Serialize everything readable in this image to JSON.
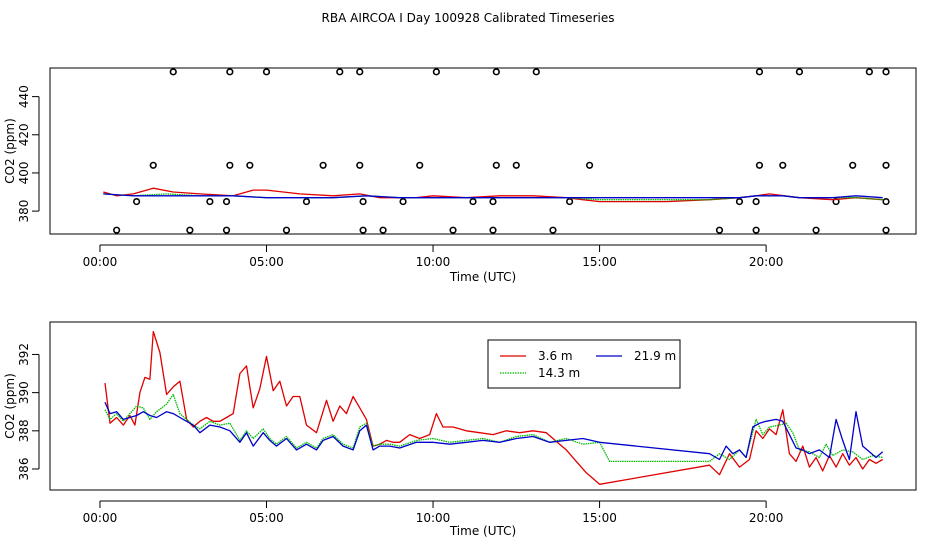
{
  "title": "RBA AIRCOA I  Day 100928  Calibrated Timeseries",
  "colors": {
    "s36": "#e00000",
    "s143": "#00bb00",
    "s219": "#0000cc",
    "black": "#000000"
  },
  "chart_data": [
    {
      "type": "line",
      "panel": "top",
      "xlabel": "Time (UTC)",
      "ylabel": "CO2 (ppm)",
      "xlim": [
        -1.5,
        24.5
      ],
      "ylim": [
        368,
        455
      ],
      "xticks": [
        0,
        5,
        10,
        15,
        20
      ],
      "xtick_labels": [
        "00:00",
        "05:00",
        "10:00",
        "15:00",
        "20:00"
      ],
      "yticks": [
        380,
        400,
        420,
        440
      ],
      "ytick_labels": [
        "380",
        "400",
        "420",
        "440"
      ],
      "series": [
        {
          "name": "3.6 m",
          "color_key": "s36",
          "x": [
            0.1,
            0.5,
            1.0,
            1.6,
            2.2,
            3.0,
            4.0,
            4.6,
            5.0,
            5.5,
            6.0,
            7.0,
            7.8,
            8.4,
            9.5,
            10.0,
            11.0,
            12.0,
            13.0,
            14.0,
            14.5,
            15.0,
            16.0,
            17.0,
            18.3,
            19.2,
            19.7,
            20.1,
            21.0,
            22.0,
            22.7,
            23.5
          ],
          "values": [
            390,
            388,
            389,
            392,
            390,
            389,
            388,
            391,
            391,
            390,
            389,
            388,
            389,
            387,
            387,
            388,
            387,
            388,
            388,
            387,
            386,
            385,
            385,
            385,
            386,
            387,
            388,
            389,
            387,
            386,
            387,
            386
          ]
        },
        {
          "name": "14.3 m",
          "color_key": "s143",
          "x": [
            0.1,
            1.0,
            2.0,
            3.0,
            4.0,
            5.0,
            6.0,
            7.0,
            8.0,
            9.0,
            10.0,
            11.0,
            12.0,
            13.0,
            14.0,
            15.0,
            16.0,
            17.0,
            18.3,
            19.2,
            19.7,
            20.5,
            21.0,
            22.0,
            22.7,
            23.5
          ],
          "values": [
            389,
            388,
            389,
            388,
            388,
            387,
            387,
            387,
            388,
            387,
            387,
            387,
            387,
            387,
            387,
            386,
            386,
            386,
            386,
            387,
            388,
            388,
            387,
            387,
            387,
            386
          ]
        },
        {
          "name": "21.9 m",
          "color_key": "s219",
          "x": [
            0.1,
            1.0,
            2.0,
            3.0,
            4.0,
            5.0,
            6.0,
            7.0,
            8.0,
            9.0,
            10.0,
            11.0,
            12.0,
            13.0,
            14.0,
            15.0,
            16.0,
            17.0,
            18.3,
            19.2,
            19.7,
            20.5,
            21.0,
            22.0,
            22.7,
            23.5
          ],
          "values": [
            389,
            388,
            388,
            388,
            388,
            387,
            387,
            387,
            388,
            387,
            387,
            387,
            387,
            387,
            387,
            387,
            387,
            387,
            387,
            387,
            388,
            388,
            387,
            387,
            388,
            387
          ]
        }
      ],
      "flags": {
        "x": [
          0.5,
          2.7,
          3.8,
          5.6,
          7.9,
          8.5,
          10.6,
          11.8,
          13.6,
          18.6,
          19.7,
          21.5,
          23.6,
          1.1,
          3.3,
          3.8,
          6.2,
          7.9,
          9.1,
          11.2,
          11.8,
          14.1,
          19.2,
          19.7,
          22.1,
          23.6,
          1.6,
          3.9,
          4.5,
          6.7,
          7.8,
          9.6,
          11.9,
          12.5,
          14.7,
          19.8,
          20.5,
          22.6,
          23.6,
          2.2,
          3.9,
          5.0,
          7.2,
          7.8,
          10.1,
          11.9,
          13.1,
          19.8,
          21.0,
          23.1,
          23.6
        ],
        "values": [
          370,
          370,
          370,
          370,
          370,
          370,
          370,
          370,
          370,
          370,
          370,
          370,
          370,
          385,
          385,
          385,
          385,
          385,
          385,
          385,
          385,
          385,
          385,
          385,
          385,
          385,
          404,
          404,
          404,
          404,
          404,
          404,
          404,
          404,
          404,
          404,
          404,
          404,
          404,
          453,
          453,
          453,
          453,
          453,
          453,
          453,
          453,
          453,
          453,
          453,
          453
        ]
      }
    },
    {
      "type": "line",
      "panel": "bottom",
      "xlabel": "Time (UTC)",
      "ylabel": "CO2 (ppm)",
      "xlim": [
        -1.5,
        24.5
      ],
      "ylim": [
        384.9,
        393.7
      ],
      "xticks": [
        0,
        5,
        10,
        15,
        20
      ],
      "xtick_labels": [
        "00:00",
        "05:00",
        "10:00",
        "15:00",
        "20:00"
      ],
      "yticks": [
        386,
        388,
        390,
        392
      ],
      "ytick_labels": [
        "386",
        "388",
        "390",
        "392"
      ],
      "legend": {
        "position": "top-center",
        "entries": [
          "3.6 m",
          "21.9 m",
          "14.3 m"
        ]
      },
      "series": [
        {
          "name": "3.6 m",
          "color_key": "s36",
          "x": [
            0.15,
            0.3,
            0.5,
            0.7,
            0.9,
            1.05,
            1.2,
            1.35,
            1.5,
            1.6,
            1.8,
            2.0,
            2.2,
            2.4,
            2.6,
            2.8,
            3.0,
            3.2,
            3.4,
            3.6,
            3.8,
            4.0,
            4.2,
            4.4,
            4.6,
            4.8,
            5.0,
            5.2,
            5.4,
            5.6,
            5.8,
            6.0,
            6.2,
            6.5,
            6.8,
            7.0,
            7.2,
            7.4,
            7.6,
            7.8,
            8.0,
            8.2,
            8.4,
            8.6,
            8.8,
            9.0,
            9.3,
            9.6,
            9.9,
            10.1,
            10.3,
            10.6,
            11.0,
            11.4,
            11.8,
            12.2,
            12.6,
            13.0,
            13.4,
            13.8,
            14.0,
            14.3,
            14.6,
            15.0,
            18.3,
            18.6,
            18.9,
            19.2,
            19.5,
            19.7,
            19.9,
            20.1,
            20.3,
            20.5,
            20.7,
            20.9,
            21.1,
            21.3,
            21.5,
            21.7,
            21.9,
            22.1,
            22.3,
            22.5,
            22.7,
            22.9,
            23.1,
            23.3,
            23.5
          ],
          "values": [
            390.5,
            388.4,
            388.7,
            388.3,
            388.8,
            388.3,
            390.0,
            390.8,
            390.7,
            393.2,
            392.1,
            389.9,
            390.3,
            390.6,
            388.6,
            388.2,
            388.5,
            388.7,
            388.5,
            388.5,
            388.7,
            388.9,
            391.0,
            391.4,
            389.2,
            390.2,
            391.9,
            390.1,
            390.6,
            389.3,
            389.8,
            389.8,
            388.3,
            387.9,
            389.6,
            388.5,
            389.3,
            388.9,
            389.8,
            389.2,
            388.6,
            387.2,
            387.3,
            387.5,
            387.4,
            387.4,
            387.8,
            387.6,
            387.8,
            388.9,
            388.2,
            388.2,
            388.0,
            387.9,
            387.8,
            388.0,
            387.9,
            388.0,
            387.9,
            387.3,
            387.0,
            386.4,
            385.8,
            385.2,
            386.2,
            385.7,
            386.8,
            386.1,
            386.5,
            388.0,
            387.6,
            388.1,
            387.8,
            389.1,
            386.8,
            386.4,
            387.2,
            386.1,
            386.6,
            385.9,
            386.7,
            386.1,
            386.8,
            386.2,
            386.6,
            386.0,
            386.5,
            386.3,
            386.5
          ]
        },
        {
          "name": "14.3 m",
          "color_key": "s143",
          "x": [
            0.15,
            0.3,
            0.5,
            0.7,
            0.9,
            1.1,
            1.3,
            1.5,
            1.7,
            2.0,
            2.2,
            2.4,
            2.6,
            2.8,
            3.0,
            3.3,
            3.6,
            3.9,
            4.2,
            4.4,
            4.6,
            4.9,
            5.1,
            5.3,
            5.6,
            5.9,
            6.2,
            6.5,
            6.7,
            7.0,
            7.3,
            7.6,
            7.8,
            8.0,
            8.2,
            8.4,
            8.7,
            9.0,
            9.5,
            10.0,
            10.5,
            11.0,
            11.5,
            12.0,
            12.5,
            13.0,
            13.5,
            14.0,
            14.5,
            15.0,
            15.3,
            18.3,
            18.6,
            18.9,
            19.2,
            19.4,
            19.7,
            19.9,
            20.1,
            20.4,
            20.6,
            20.8,
            21.0,
            21.3,
            21.6,
            21.8,
            22.0,
            22.3,
            22.6,
            22.9,
            23.2,
            23.5
          ],
          "values": [
            389.1,
            388.6,
            388.9,
            388.5,
            388.9,
            389.3,
            389.2,
            388.6,
            389.0,
            389.4,
            389.9,
            388.9,
            388.6,
            388.3,
            388.1,
            388.5,
            388.3,
            388.4,
            387.5,
            388.0,
            387.6,
            388.1,
            387.6,
            387.3,
            387.7,
            387.1,
            387.4,
            387.1,
            387.6,
            387.8,
            387.3,
            387.1,
            388.2,
            388.4,
            387.2,
            387.3,
            387.3,
            387.2,
            387.5,
            387.6,
            387.4,
            387.5,
            387.6,
            387.4,
            387.7,
            387.8,
            387.4,
            387.6,
            387.3,
            387.4,
            386.4,
            386.4,
            386.8,
            386.5,
            387.0,
            386.6,
            388.6,
            387.8,
            388.2,
            388.3,
            388.4,
            387.9,
            387.0,
            386.9,
            386.6,
            387.3,
            386.7,
            387.0,
            386.9,
            386.5,
            386.7,
            386.6
          ]
        },
        {
          "name": "21.9 m",
          "color_key": "s219",
          "x": [
            0.15,
            0.3,
            0.5,
            0.7,
            0.9,
            1.1,
            1.3,
            1.5,
            1.7,
            2.0,
            2.2,
            2.4,
            2.6,
            2.8,
            3.0,
            3.3,
            3.6,
            3.9,
            4.2,
            4.4,
            4.6,
            4.9,
            5.1,
            5.3,
            5.6,
            5.9,
            6.2,
            6.5,
            6.7,
            7.0,
            7.3,
            7.6,
            7.8,
            8.0,
            8.2,
            8.4,
            8.7,
            9.0,
            9.5,
            10.0,
            10.5,
            11.0,
            11.5,
            12.0,
            12.5,
            13.0,
            13.5,
            14.0,
            14.5,
            15.0,
            18.3,
            18.6,
            18.8,
            19.0,
            19.2,
            19.4,
            19.6,
            19.8,
            20.0,
            20.3,
            20.5,
            20.7,
            20.9,
            21.1,
            21.3,
            21.6,
            21.9,
            22.1,
            22.3,
            22.5,
            22.7,
            22.9,
            23.1,
            23.3,
            23.5
          ],
          "values": [
            389.5,
            388.9,
            389.0,
            388.6,
            388.7,
            388.8,
            389.0,
            388.8,
            388.7,
            389.0,
            388.9,
            388.7,
            388.5,
            388.3,
            387.9,
            388.3,
            388.2,
            388.0,
            387.4,
            387.9,
            387.2,
            387.9,
            387.5,
            387.2,
            387.6,
            387.0,
            387.3,
            387.0,
            387.5,
            387.7,
            387.2,
            387.0,
            388.0,
            388.3,
            387.0,
            387.2,
            387.2,
            387.1,
            387.4,
            387.4,
            387.3,
            387.4,
            387.5,
            387.4,
            387.6,
            387.7,
            387.4,
            387.5,
            387.6,
            387.4,
            386.8,
            386.5,
            387.2,
            386.8,
            387.0,
            386.6,
            388.2,
            388.4,
            388.5,
            388.6,
            388.5,
            387.8,
            387.1,
            387.0,
            386.8,
            387.0,
            386.6,
            388.6,
            387.5,
            386.5,
            389.0,
            387.2,
            386.9,
            386.6,
            386.9
          ]
        }
      ]
    }
  ]
}
